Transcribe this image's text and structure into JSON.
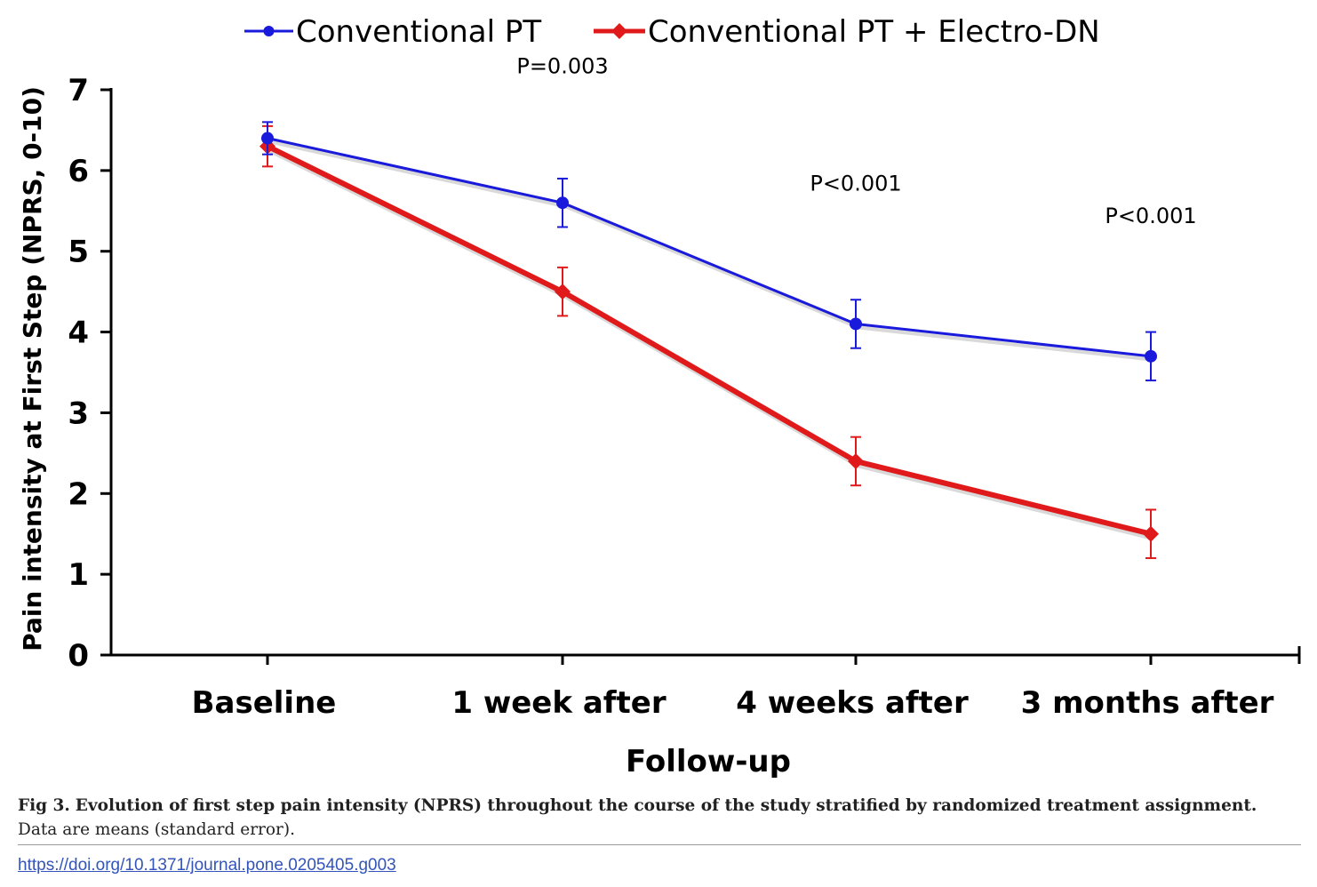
{
  "chart_data": {
    "type": "line",
    "categories": [
      "Baseline",
      "1 week after",
      "4 weeks after",
      "3 months after"
    ],
    "series": [
      {
        "name": "Conventional PT",
        "color": "#1a1adc",
        "marker": "circle",
        "values": [
          6.4,
          5.6,
          4.1,
          3.7
        ],
        "error": [
          0.2,
          0.3,
          0.3,
          0.3
        ]
      },
      {
        "name": "Conventional PT + Electro-DN",
        "color": "#e01a1a",
        "marker": "diamond",
        "values": [
          6.3,
          4.5,
          2.4,
          1.5
        ],
        "error": [
          0.25,
          0.3,
          0.3,
          0.3
        ]
      }
    ],
    "annotations": [
      {
        "category": "1 week after",
        "text": "P=0.003",
        "y": 7.3
      },
      {
        "category": "4 weeks after",
        "text": "P<0.001",
        "y": 5.85
      },
      {
        "category": "3 months after",
        "text": "P<0.001",
        "y": 5.45
      }
    ],
    "xlabel": "Follow-up",
    "ylabel": "Pain intensity at First Step (NPRS, 0-10)",
    "ylim": [
      0,
      7
    ],
    "yticks": [
      "0",
      "1",
      "2",
      "3",
      "4",
      "5",
      "6",
      "7"
    ],
    "legend_position": "top",
    "grid": false
  },
  "caption": {
    "label": "Fig 3.",
    "title": "Evolution of first step pain intensity (NPRS) throughout the course of the study stratified by randomized treatment assignment.",
    "text": "Data are means (standard error)."
  },
  "doi": "https://doi.org/10.1371/journal.pone.0205405.g003"
}
